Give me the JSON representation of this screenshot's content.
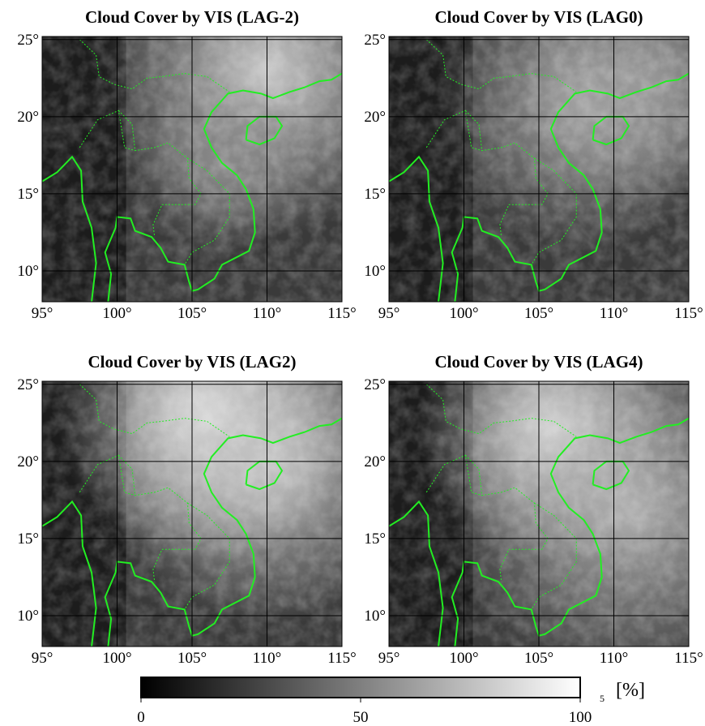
{
  "panels": [
    {
      "title": "Cloud Cover by VIS (LAG-2)"
    },
    {
      "title": "Cloud Cover by VIS (LAG0)"
    },
    {
      "title": "Cloud Cover by VIS (LAG2)"
    },
    {
      "title": "Cloud Cover by VIS (LAG4)"
    }
  ],
  "lon_range": [
    95,
    115
  ],
  "lat_range": [
    8,
    25.2
  ],
  "lon_ticks": [
    {
      "value": 95,
      "label": "95°"
    },
    {
      "value": 100,
      "label": "100°"
    },
    {
      "value": 105,
      "label": "105°"
    },
    {
      "value": 110,
      "label": "110°"
    },
    {
      "value": 115,
      "label": "115°"
    }
  ],
  "lat_ticks": [
    {
      "value": 10,
      "label": "10°"
    },
    {
      "value": 15,
      "label": "15°"
    },
    {
      "value": 20,
      "label": "20°"
    },
    {
      "value": 25,
      "label": "25°"
    }
  ],
  "colorbar": {
    "range": [
      0,
      100
    ],
    "ticks": [
      0,
      50,
      100
    ],
    "unit": "[%]",
    "extra_label": "5"
  }
}
